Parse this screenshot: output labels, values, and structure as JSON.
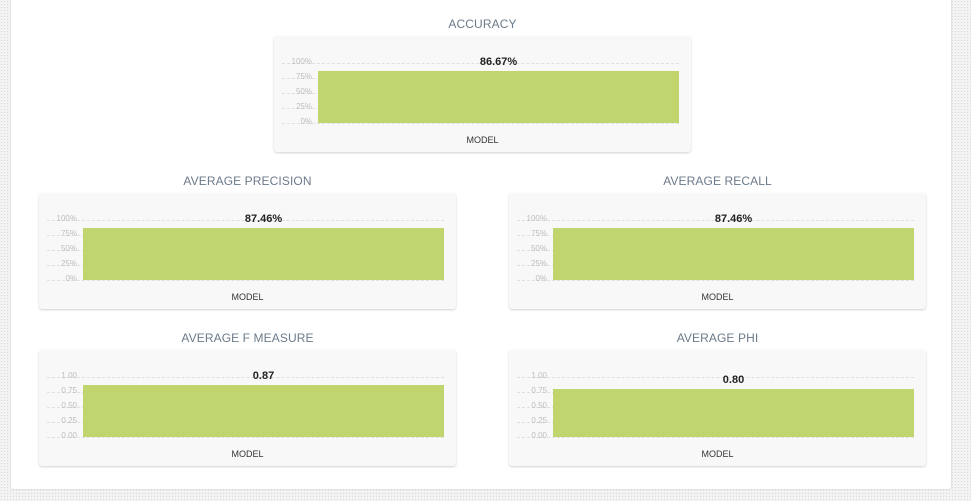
{
  "chart_data": [
    {
      "type": "bar",
      "title": "ACCURACY",
      "categories": [
        "MODEL"
      ],
      "values": [
        86.67
      ],
      "value_labels": [
        "86.67%"
      ],
      "yticks": [
        "100%",
        "75%",
        "50%",
        "25%",
        "0%"
      ],
      "ylim": [
        0,
        100
      ],
      "bar_color": "#c1d56f"
    },
    {
      "type": "bar",
      "title": "AVERAGE PRECISION",
      "categories": [
        "MODEL"
      ],
      "values": [
        87.46
      ],
      "value_labels": [
        "87.46%"
      ],
      "yticks": [
        "100%",
        "75%",
        "50%",
        "25%",
        "0%"
      ],
      "ylim": [
        0,
        100
      ],
      "bar_color": "#c1d56f"
    },
    {
      "type": "bar",
      "title": "AVERAGE RECALL",
      "categories": [
        "MODEL"
      ],
      "values": [
        87.46
      ],
      "value_labels": [
        "87.46%"
      ],
      "yticks": [
        "100%",
        "75%",
        "50%",
        "25%",
        "0%"
      ],
      "ylim": [
        0,
        100
      ],
      "bar_color": "#c1d56f"
    },
    {
      "type": "bar",
      "title": "AVERAGE F MEASURE",
      "categories": [
        "MODEL"
      ],
      "values": [
        0.87
      ],
      "value_labels": [
        "0.87"
      ],
      "yticks": [
        "1.00",
        "0.75",
        "0.50",
        "0.25",
        "0.00"
      ],
      "ylim": [
        0,
        1
      ],
      "bar_color": "#c1d56f"
    },
    {
      "type": "bar",
      "title": "AVERAGE PHI",
      "categories": [
        "MODEL"
      ],
      "values": [
        0.8
      ],
      "value_labels": [
        "0.80"
      ],
      "yticks": [
        "1.00",
        "0.75",
        "0.50",
        "0.25",
        "0.00"
      ],
      "ylim": [
        0,
        1
      ],
      "bar_color": "#c1d56f"
    }
  ]
}
